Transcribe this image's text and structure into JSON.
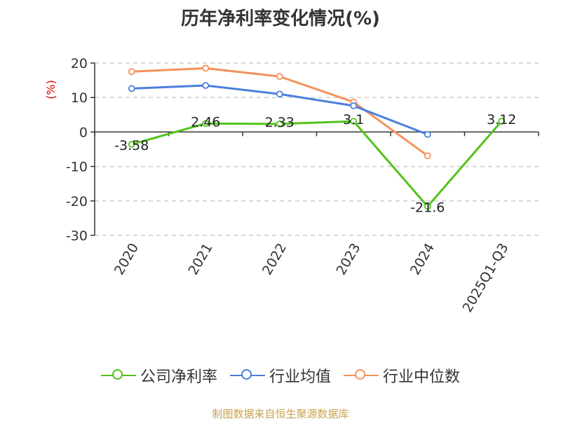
{
  "title": "历年净利率变化情况(%)",
  "source_text": "制图数据来自恒生聚源数据库",
  "chart_data": {
    "type": "line",
    "title": "历年净利率变化情况(%)",
    "ylabel": "(%)",
    "xlabel": "",
    "ylim": [
      -30,
      20
    ],
    "yticks": [
      20,
      10,
      0,
      -10,
      -20,
      -30
    ],
    "grid": true,
    "legend_position": "bottom",
    "categories": [
      "2020",
      "2021",
      "2022",
      "2023",
      "2024",
      "2025Q1-Q3"
    ],
    "series": [
      {
        "name": "公司净利率",
        "color": "#52c41a",
        "values": [
          -3.58,
          2.46,
          2.33,
          3.1,
          -21.6,
          3.12
        ],
        "labels": true
      },
      {
        "name": "行业均值",
        "color": "#4a7fdc",
        "values": [
          12.6,
          13.5,
          11.0,
          7.6,
          -0.7,
          null
        ],
        "labels": false
      },
      {
        "name": "行业中位数",
        "color": "#f5925a",
        "values": [
          17.5,
          18.5,
          16.1,
          8.7,
          -6.9,
          null
        ],
        "labels": false
      }
    ]
  }
}
